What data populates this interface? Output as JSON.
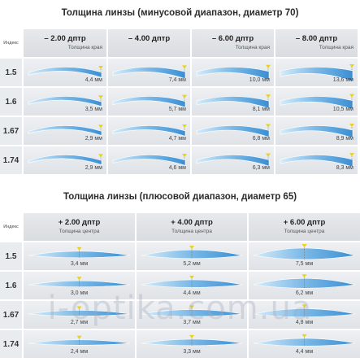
{
  "minus": {
    "title": "Толщина линзы (минусовой диапазон, диаметр 70)",
    "index_label": "Индекс",
    "columns": [
      {
        "power": "– 2.00 дптр",
        "sub": ""
      },
      {
        "power": "– 4.00 дптр",
        "sub": ""
      },
      {
        "power": "– 6.00 дптр",
        "sub": "Толщина края"
      },
      {
        "power": "– 8.00 дптр",
        "sub": "Толщина края"
      }
    ],
    "first_sub": "Толщина края",
    "rows": [
      {
        "index": "1.5",
        "values": [
          "4,4 мм",
          "7,4 мм",
          "10,0 мм",
          "13,6 мм"
        ]
      },
      {
        "index": "1.6",
        "values": [
          "3,5 мм",
          "5,7 мм",
          "8,1 мм",
          "10,5 мм"
        ]
      },
      {
        "index": "1.67",
        "values": [
          "2,9 мм",
          "4,7 мм",
          "6,8 мм",
          "8,9 мм"
        ]
      },
      {
        "index": "1.74",
        "values": [
          "2,9 мм",
          "4,6 мм",
          "6,3 мм",
          "8,3 мм"
        ]
      }
    ]
  },
  "plus": {
    "title": "Толщина линзы (плюсовой диапазон, диаметр 65)",
    "index_label": "Индекс",
    "columns": [
      {
        "power": "+ 2.00 дптр",
        "sub": "Толщина центра"
      },
      {
        "power": "+ 4.00 дптр",
        "sub": "Толщина центра"
      },
      {
        "power": "+ 6.00 дптр",
        "sub": "Толщина центра"
      }
    ],
    "rows": [
      {
        "index": "1.5",
        "values": [
          "3,4 мм",
          "5,2 мм",
          "7,5 мм"
        ]
      },
      {
        "index": "1.6",
        "values": [
          "3,0 мм",
          "4,4 мм",
          "6,2 мм"
        ]
      },
      {
        "index": "1.67",
        "values": [
          "2,7 мм",
          "3,7 мм",
          "4,8 мм"
        ]
      },
      {
        "index": "1.74",
        "values": [
          "2,4 мм",
          "3,3 мм",
          "4,4 мм"
        ]
      }
    ]
  },
  "watermark": "i-optika.com.ua",
  "colors": {
    "lens_light": "#d6ecfa",
    "lens_dark": "#3a8fd4",
    "marker": "#e8d21a",
    "header_bg": "#dfe2e6"
  }
}
